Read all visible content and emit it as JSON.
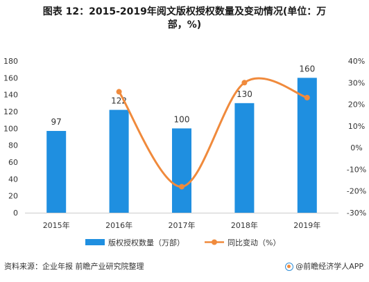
{
  "title_line1": "图表 12：2015-2019年阅文版权授权数量及变动情况(单位：万",
  "title_line2": "部，%)",
  "source_text": "资料来源：企业年报 前瞻产业研究院整理",
  "brand_text": "@前瞻经济学人APP",
  "colors": {
    "bar": "#1f8fe0",
    "line": "#f08a3c",
    "axis": "#cccccc",
    "text": "#333333"
  },
  "chart_data": {
    "type": "bar",
    "title": "2015-2019年阅文版权授权数量及变动情况(单位：万部，%)",
    "categories": [
      "2015年",
      "2016年",
      "2017年",
      "2018年",
      "2019年"
    ],
    "series": [
      {
        "name": "版权授权数量（万部）",
        "type": "bar",
        "axis": "left",
        "values": [
          97,
          122,
          100,
          130,
          160
        ],
        "value_labels": [
          "97",
          "122",
          "100",
          "130",
          "160"
        ]
      },
      {
        "name": "同比变动（%）",
        "type": "line",
        "axis": "right",
        "values": [
          null,
          25.8,
          -18.0,
          30.0,
          23.1
        ]
      }
    ],
    "y_left": {
      "min": 0,
      "max": 180,
      "ticks": [
        0,
        20,
        40,
        60,
        80,
        100,
        120,
        140,
        160,
        180
      ],
      "tick_labels": [
        "0",
        "20",
        "40",
        "60",
        "80",
        "100",
        "120",
        "140",
        "160",
        "180"
      ]
    },
    "y_right": {
      "min": -30,
      "max": 40,
      "ticks": [
        -30,
        -20,
        -10,
        0,
        10,
        20,
        30,
        40
      ],
      "tick_labels": [
        "-30%",
        "-20%",
        "-10%",
        "0%",
        "10%",
        "20%",
        "30%",
        "40%"
      ]
    },
    "grid": false,
    "legend_position": "bottom"
  }
}
